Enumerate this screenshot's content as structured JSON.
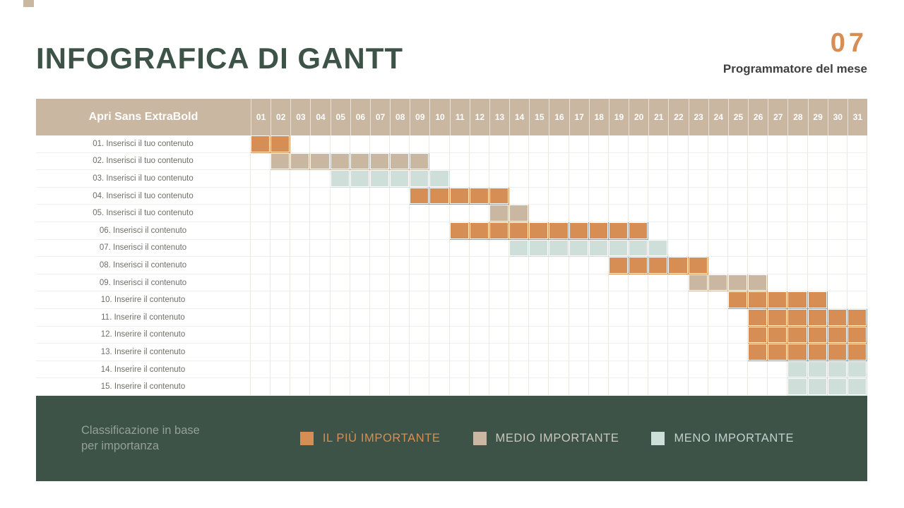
{
  "page": {
    "title": "INFOGRAFICA DI GANTT",
    "badge_number": "07",
    "subtitle": "Programmatore del mese"
  },
  "colors": {
    "high": "#D78E54",
    "medium": "#C9B7A2",
    "low": "#CEDFDA",
    "dark_green": "#3E5348"
  },
  "chart_data": {
    "type": "gantt",
    "title": "INFOGRAFICA DI GANTT",
    "header_label": "Apri Sans ExtraBold",
    "days": [
      "01",
      "02",
      "03",
      "04",
      "05",
      "06",
      "07",
      "08",
      "09",
      "10",
      "11",
      "12",
      "13",
      "14",
      "15",
      "16",
      "17",
      "18",
      "19",
      "20",
      "21",
      "22",
      "23",
      "24",
      "25",
      "26",
      "27",
      "28",
      "29",
      "30",
      "31"
    ],
    "priority_colors": {
      "high": "#D78E54",
      "medium": "#C9B7A2",
      "low": "#CEDFDA"
    },
    "priority_names": {
      "high": "IL PIÙ IMPORTANTE",
      "medium": "MEDIO IMPORTANTE",
      "low": "MENO IMPORTANTE"
    },
    "tasks": [
      {
        "label": "01. Inserisci il tuo contenuto",
        "start": 1,
        "end": 2,
        "priority": "high"
      },
      {
        "label": "02. Inserisci il tuo contenuto",
        "start": 2,
        "end": 9,
        "priority": "medium"
      },
      {
        "label": "03. Inserisci il tuo contenuto",
        "start": 5,
        "end": 10,
        "priority": "low"
      },
      {
        "label": "04. Inserisci il tuo contenuto",
        "start": 9,
        "end": 13,
        "priority": "high"
      },
      {
        "label": "05. Inserisci il tuo contenuto",
        "start": 13,
        "end": 14,
        "priority": "medium"
      },
      {
        "label": "06. Inserisci il contenuto",
        "start": 11,
        "end": 20,
        "priority": "high"
      },
      {
        "label": "07. Inserisci il contenuto",
        "start": 14,
        "end": 21,
        "priority": "low"
      },
      {
        "label": "08. Inserisci il contenuto",
        "start": 19,
        "end": 23,
        "priority": "high"
      },
      {
        "label": "09. Inserisci il contenuto",
        "start": 23,
        "end": 26,
        "priority": "medium"
      },
      {
        "label": "10. Inserire il contenuto",
        "start": 25,
        "end": 29,
        "priority": "high"
      },
      {
        "label": "11. Inserire il contenuto",
        "start": 26,
        "end": 31,
        "priority": "high"
      },
      {
        "label": "12. Inserire il contenuto",
        "start": 26,
        "end": 31,
        "priority": "high"
      },
      {
        "label": "13. Inserire il contenuto",
        "start": 26,
        "end": 31,
        "priority": "high"
      },
      {
        "label": "14. Inserire il contenuto",
        "start": 28,
        "end": 31,
        "priority": "low"
      },
      {
        "label": "15. Inserire il contenuto",
        "start": 28,
        "end": 31,
        "priority": "low"
      }
    ]
  },
  "legend": {
    "caption_line1": "Classificazione in base",
    "caption_line2": "per importanza",
    "items": [
      {
        "label": "IL PIÙ IMPORTANTE",
        "swatch": "#D78E54",
        "text_color": "#D78E54"
      },
      {
        "label": "MEDIO IMPORTANTE",
        "swatch": "#C9B7A2",
        "text_color": "#CBC7BD"
      },
      {
        "label": "MENO IMPORTANTE",
        "swatch": "#CEDFDA",
        "text_color": "#C2D1CB"
      }
    ]
  }
}
